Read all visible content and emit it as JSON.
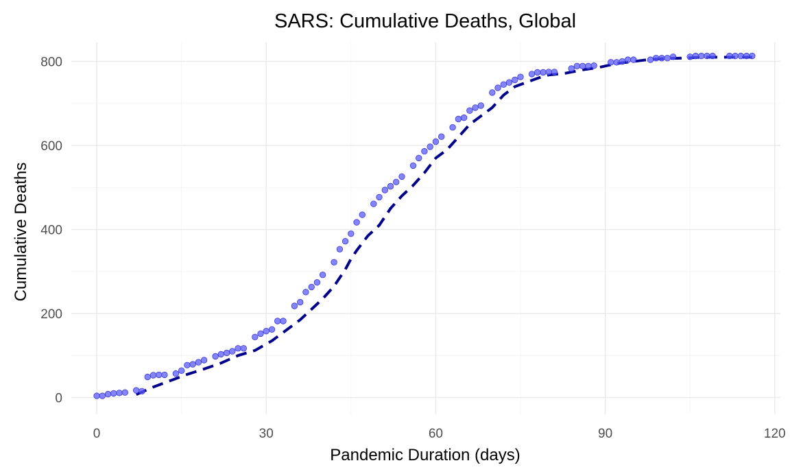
{
  "chart_data": {
    "type": "scatter",
    "title": "SARS: Cumulative Deaths, Global",
    "xlabel": "Pandemic Duration (days)",
    "ylabel": "Cumulative Deaths",
    "xlim": [
      -4.5,
      121
    ],
    "ylim": [
      -40,
      845
    ],
    "x_ticks": [
      0,
      30,
      60,
      90,
      120
    ],
    "y_ticks": [
      0,
      200,
      400,
      600,
      800
    ],
    "x_tick_labels": [
      "0",
      "30",
      "60",
      "90",
      "120"
    ],
    "y_tick_labels": [
      "0",
      "200",
      "400",
      "600",
      "800"
    ],
    "grid": true,
    "legend": "none",
    "colors": {
      "points": "#5b5bff",
      "fit_line": "#00008b",
      "grid": "#ebebeb"
    },
    "series": [
      {
        "kind": "points",
        "x": [
          0,
          1,
          2,
          3,
          4,
          5,
          7,
          8,
          9,
          10,
          11,
          12,
          14,
          15,
          16,
          17,
          18,
          19,
          21,
          22,
          23,
          24,
          25,
          26,
          28,
          29,
          30,
          31,
          32,
          33,
          35,
          36,
          37,
          38,
          39,
          40,
          42,
          43,
          44,
          45,
          46,
          47,
          49,
          50,
          51,
          52,
          53,
          54,
          56,
          57,
          58,
          59,
          60,
          61,
          63,
          64,
          65,
          66,
          67,
          68,
          70,
          71,
          72,
          73,
          74,
          75,
          77,
          78,
          79,
          80,
          81,
          84,
          85,
          86,
          87,
          88,
          91,
          92,
          93,
          94,
          95,
          98,
          99,
          100,
          101,
          102,
          105,
          106,
          107,
          108,
          109,
          112,
          113,
          114,
          115,
          116
        ],
        "y": [
          4,
          4,
          8,
          10,
          11,
          12,
          17,
          15,
          49,
          53,
          54,
          54,
          57,
          64,
          77,
          79,
          84,
          89,
          98,
          103,
          106,
          110,
          117,
          117,
          144,
          152,
          158,
          162,
          182,
          182,
          218,
          227,
          251,
          263,
          274,
          292,
          322,
          353,
          372,
          390,
          417,
          435,
          461,
          477,
          494,
          503,
          513,
          526,
          552,
          570,
          586,
          597,
          609,
          621,
          643,
          663,
          666,
          683,
          690,
          695,
          726,
          737,
          745,
          750,
          756,
          763,
          770,
          774,
          774,
          775,
          775,
          783,
          789,
          789,
          789,
          790,
          798,
          798,
          800,
          804,
          804,
          804,
          808,
          808,
          808,
          811,
          811,
          813,
          813,
          813,
          813,
          813,
          813,
          813,
          813,
          813
        ]
      },
      {
        "kind": "dashed-line",
        "x": [
          7,
          10,
          13,
          16,
          19,
          22,
          25,
          28,
          31,
          34,
          36,
          38,
          40,
          42,
          44,
          45,
          46,
          48,
          50,
          52,
          54,
          56,
          58,
          60,
          62,
          64,
          66,
          68,
          70,
          72,
          74,
          76,
          78,
          80,
          83,
          86,
          89,
          92,
          95,
          98,
          101,
          104,
          107,
          110,
          113,
          116
        ],
        "y": [
          7,
          25,
          40,
          55,
          68,
          82,
          100,
          112,
          135,
          165,
          185,
          210,
          235,
          265,
          305,
          330,
          350,
          385,
          410,
          450,
          480,
          505,
          535,
          570,
          590,
          620,
          650,
          670,
          690,
          720,
          740,
          750,
          760,
          768,
          772,
          780,
          786,
          795,
          800,
          805,
          807,
          808,
          810,
          810,
          810,
          810
        ]
      }
    ]
  }
}
